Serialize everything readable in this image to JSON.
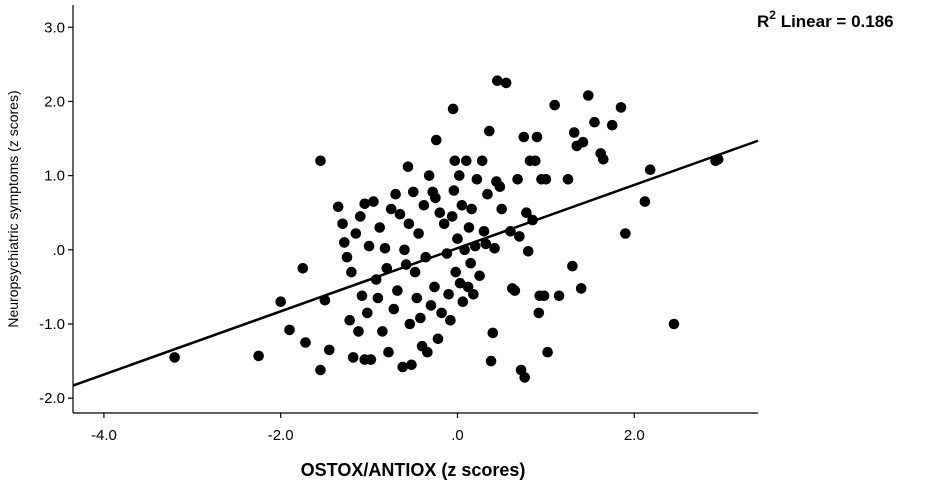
{
  "chart_data": {
    "type": "scatter",
    "xlabel": "OSTOX/ANTIOX (z scores)",
    "ylabel": "Neuropsychiatric symptoms (z scores)",
    "annotation": {
      "prefix": "R",
      "sup": "2",
      "text": " Linear = 0.186"
    },
    "xlim": [
      -4.35,
      3.4
    ],
    "ylim": [
      -2.2,
      3.3
    ],
    "xticks": [
      -4.0,
      -2.0,
      0.0,
      2.0
    ],
    "xtick_labels": [
      "-4.0",
      "-2.0",
      ".0",
      "2.0"
    ],
    "yticks": [
      3.0,
      2.0,
      1.0,
      0.0,
      -1.0,
      -2.0
    ],
    "ytick_labels": [
      "3.0",
      "2.0",
      "1.0",
      ".0",
      "-1.0",
      "-2.0"
    ],
    "grid": false,
    "fit_line": {
      "x": [
        -4.35,
        3.4
      ],
      "y": [
        -1.83,
        1.47
      ]
    },
    "points": [
      [
        -3.2,
        -1.45
      ],
      [
        -2.25,
        -1.43
      ],
      [
        -2.0,
        -0.7
      ],
      [
        -1.9,
        -1.08
      ],
      [
        -1.75,
        -0.25
      ],
      [
        -1.72,
        -1.25
      ],
      [
        -1.55,
        1.2
      ],
      [
        -1.55,
        -1.62
      ],
      [
        -1.5,
        -0.68
      ],
      [
        -1.45,
        -1.35
      ],
      [
        -1.35,
        0.58
      ],
      [
        -1.3,
        0.35
      ],
      [
        -1.28,
        0.1
      ],
      [
        -1.25,
        -0.1
      ],
      [
        -1.22,
        -0.95
      ],
      [
        -1.2,
        -0.3
      ],
      [
        -1.18,
        -1.45
      ],
      [
        -1.15,
        0.22
      ],
      [
        -1.12,
        -1.1
      ],
      [
        -1.1,
        0.45
      ],
      [
        -1.08,
        -0.62
      ],
      [
        -1.05,
        0.62
      ],
      [
        -1.05,
        -1.48
      ],
      [
        -1.02,
        -0.85
      ],
      [
        -1.0,
        0.05
      ],
      [
        -0.98,
        -1.48
      ],
      [
        -0.95,
        0.65
      ],
      [
        -0.92,
        -0.4
      ],
      [
        -0.9,
        -0.65
      ],
      [
        -0.88,
        0.3
      ],
      [
        -0.85,
        -1.1
      ],
      [
        -0.82,
        0.02
      ],
      [
        -0.8,
        -0.25
      ],
      [
        -0.78,
        -1.38
      ],
      [
        -0.75,
        0.55
      ],
      [
        -0.72,
        -0.8
      ],
      [
        -0.7,
        0.75
      ],
      [
        -0.68,
        -0.55
      ],
      [
        -0.65,
        0.48
      ],
      [
        -0.62,
        -1.58
      ],
      [
        -0.6,
        0.0
      ],
      [
        -0.58,
        -0.2
      ],
      [
        -0.56,
        1.12
      ],
      [
        -0.55,
        0.35
      ],
      [
        -0.54,
        -1.0
      ],
      [
        -0.52,
        -1.55
      ],
      [
        -0.5,
        0.78
      ],
      [
        -0.48,
        -0.3
      ],
      [
        -0.46,
        -0.65
      ],
      [
        -0.44,
        0.22
      ],
      [
        -0.42,
        -0.92
      ],
      [
        -0.4,
        -1.3
      ],
      [
        -0.38,
        0.6
      ],
      [
        -0.36,
        -0.1
      ],
      [
        -0.34,
        -1.38
      ],
      [
        -0.32,
        1.0
      ],
      [
        -0.3,
        -0.75
      ],
      [
        -0.28,
        0.78
      ],
      [
        -0.26,
        -0.5
      ],
      [
        -0.25,
        0.7
      ],
      [
        -0.24,
        1.48
      ],
      [
        -0.22,
        -1.2
      ],
      [
        -0.2,
        0.5
      ],
      [
        -0.18,
        -0.85
      ],
      [
        -0.15,
        0.35
      ],
      [
        -0.12,
        -0.05
      ],
      [
        -0.1,
        -0.6
      ],
      [
        -0.08,
        -0.95
      ],
      [
        -0.06,
        0.45
      ],
      [
        -0.05,
        1.9
      ],
      [
        -0.04,
        0.8
      ],
      [
        -0.03,
        1.2
      ],
      [
        -0.02,
        -0.3
      ],
      [
        0.0,
        0.15
      ],
      [
        0.02,
        1.0
      ],
      [
        0.03,
        -0.45
      ],
      [
        0.05,
        0.6
      ],
      [
        0.06,
        -0.7
      ],
      [
        0.08,
        0.0
      ],
      [
        0.1,
        1.2
      ],
      [
        0.12,
        -0.5
      ],
      [
        0.13,
        0.3
      ],
      [
        0.15,
        -0.18
      ],
      [
        0.16,
        0.55
      ],
      [
        0.18,
        -0.6
      ],
      [
        0.2,
        0.05
      ],
      [
        0.22,
        0.95
      ],
      [
        0.25,
        -0.35
      ],
      [
        0.28,
        1.2
      ],
      [
        0.3,
        0.25
      ],
      [
        0.32,
        0.08
      ],
      [
        0.34,
        0.75
      ],
      [
        0.36,
        1.6
      ],
      [
        0.38,
        -1.5
      ],
      [
        0.4,
        -1.12
      ],
      [
        0.42,
        0.02
      ],
      [
        0.44,
        0.92
      ],
      [
        0.45,
        2.28
      ],
      [
        0.48,
        0.85
      ],
      [
        0.5,
        0.55
      ],
      [
        0.55,
        2.25
      ],
      [
        0.6,
        0.25
      ],
      [
        0.62,
        -0.52
      ],
      [
        0.65,
        -0.55
      ],
      [
        0.68,
        0.95
      ],
      [
        0.7,
        0.18
      ],
      [
        0.72,
        -1.62
      ],
      [
        0.75,
        1.52
      ],
      [
        0.76,
        -1.72
      ],
      [
        0.78,
        0.5
      ],
      [
        0.8,
        -0.02
      ],
      [
        0.82,
        1.2
      ],
      [
        0.85,
        0.4
      ],
      [
        0.88,
        1.2
      ],
      [
        0.9,
        1.52
      ],
      [
        0.92,
        -0.85
      ],
      [
        0.93,
        -0.62
      ],
      [
        0.95,
        0.95
      ],
      [
        0.98,
        -0.62
      ],
      [
        1.0,
        0.95
      ],
      [
        1.02,
        -1.38
      ],
      [
        1.1,
        1.95
      ],
      [
        1.15,
        -0.62
      ],
      [
        1.25,
        0.95
      ],
      [
        1.3,
        -0.22
      ],
      [
        1.32,
        1.58
      ],
      [
        1.35,
        1.4
      ],
      [
        1.4,
        -0.52
      ],
      [
        1.42,
        1.45
      ],
      [
        1.48,
        2.08
      ],
      [
        1.55,
        1.72
      ],
      [
        1.62,
        1.3
      ],
      [
        1.65,
        1.22
      ],
      [
        1.75,
        1.68
      ],
      [
        1.85,
        1.92
      ],
      [
        1.9,
        0.22
      ],
      [
        2.12,
        0.65
      ],
      [
        2.18,
        1.08
      ],
      [
        2.45,
        -1.0
      ],
      [
        2.92,
        1.2
      ],
      [
        2.95,
        1.22
      ]
    ]
  }
}
